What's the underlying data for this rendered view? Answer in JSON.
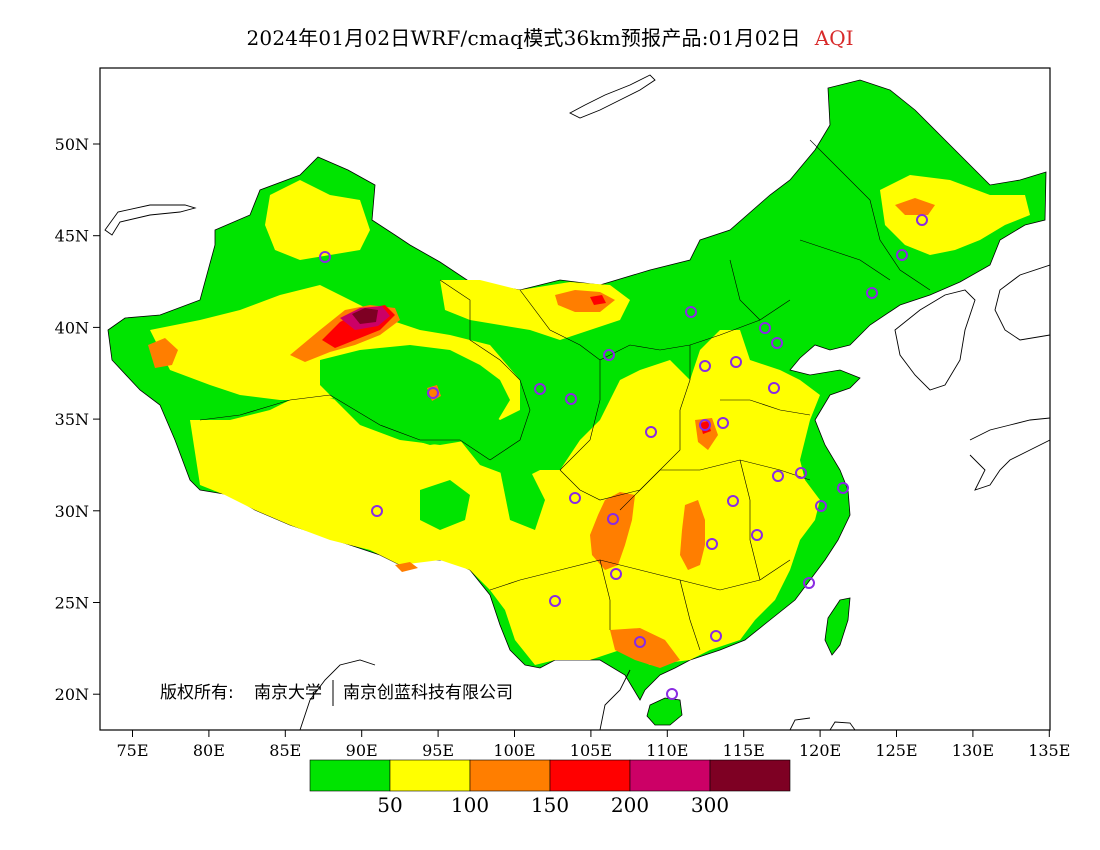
{
  "header": {
    "title_prefix": "2024年01月02日WRF/cmaq模式36km预报产品:01月02日",
    "variable": "AQI",
    "variable_color": "#d82a2a"
  },
  "axes": {
    "lat_labels": [
      "50N",
      "45N",
      "40N",
      "35N",
      "30N",
      "25N",
      "20N"
    ],
    "lon_labels": [
      "75E",
      "80E",
      "85E",
      "90E",
      "95E",
      "100E",
      "105E",
      "110E",
      "115E",
      "120E",
      "125E",
      "130E",
      "135E"
    ]
  },
  "copyright": {
    "label": "版权所有:",
    "org1": "南京大学",
    "org2": "南京创蓝科技有限公司"
  },
  "legend": {
    "colors": [
      "#00e400",
      "#ffff00",
      "#ff7e00",
      "#ff0000",
      "#cc0066",
      "#7e0023"
    ],
    "labels": [
      "50",
      "100",
      "150",
      "200",
      "300"
    ]
  },
  "map_colors": {
    "good": "#00e400",
    "moderate": "#ffff00",
    "sensitive": "#ff7e00",
    "unhealthy": "#ff0000",
    "very_unhealthy": "#cc0066",
    "hazardous": "#7e0023",
    "station_marker": "#8a2be2"
  }
}
